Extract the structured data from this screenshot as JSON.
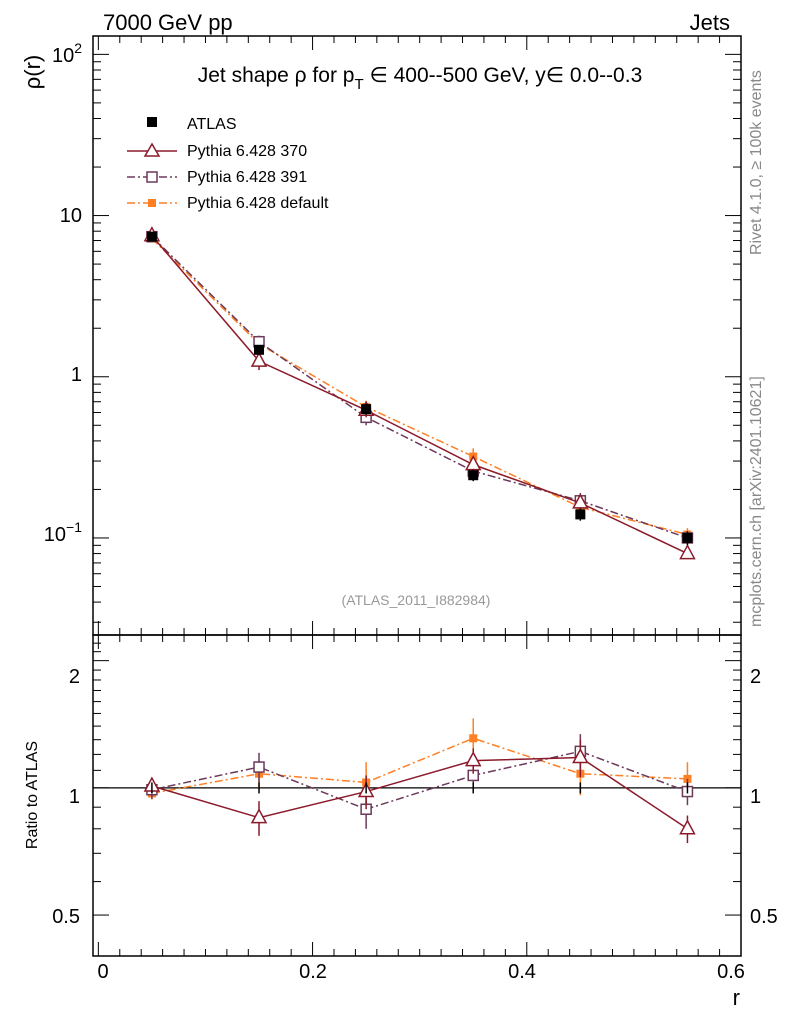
{
  "header": {
    "left": "7000 GeV pp",
    "right": "Jets"
  },
  "side_labels": {
    "rivet": "Rivet 4.1.0, ≥ 100k events",
    "mcplots": "mcplots.cern.ch [arXiv:2401.10621]"
  },
  "chart_data": {
    "type": "line",
    "title": "Jet shape ρ for p_T ∈ 400--500 GeV, y∈ 0.0--0.3",
    "title_parts": {
      "pre": "Jet shape ρ for p",
      "sub": "T",
      "post": " ∈ 400--500 GeV, y∈ 0.0--0.3"
    },
    "analysis_label": "(ATLAS_2011_I882984)",
    "xlabel": "r",
    "ylabel": "ρ(r)",
    "ratio_ylabel": "Ratio to ATLAS",
    "xlim": [
      -0.005,
      0.6
    ],
    "ylim": [
      0.025,
      130
    ],
    "yscale": "log",
    "ratio_ylim": [
      0.4,
      2.3
    ],
    "ratio_yscale": "log",
    "x_ticks": [
      0,
      0.2,
      0.4,
      0.6
    ],
    "x_tick_labels": [
      "0",
      "0.2",
      "0.4",
      "0.6"
    ],
    "y_ticks": [
      0.1,
      1,
      10,
      100
    ],
    "y_tick_labels": {
      "e-1": {
        "base": "10",
        "exp": "−1"
      },
      "one": "1",
      "ten": "10",
      "e2": {
        "base": "10",
        "exp": "2"
      }
    },
    "ratio_ticks": [
      0.5,
      1,
      2
    ],
    "ratio_tick_labels": [
      "0.5",
      "1",
      "2"
    ],
    "x": [
      0.05,
      0.15,
      0.25,
      0.35,
      0.45,
      0.55
    ],
    "series": [
      {
        "name": "ATLAS",
        "color": "#000000",
        "marker": "filled-square",
        "values": [
          7.4,
          1.47,
          0.63,
          0.245,
          0.14,
          0.1
        ],
        "errors": [
          0.3,
          0.1,
          0.05,
          0.02,
          0.012,
          0.01
        ],
        "ratio": [
          1,
          1,
          1,
          1,
          1,
          1
        ],
        "ratio_errors": [
          0,
          0,
          0,
          0,
          0,
          0
        ]
      },
      {
        "name": "Pythia 6.428 370",
        "color": "#8b1a2b",
        "marker": "open-triangle",
        "line": "solid",
        "values": [
          7.5,
          1.25,
          0.62,
          0.285,
          0.165,
          0.08
        ],
        "errors": [
          0.4,
          0.15,
          0.06,
          0.02,
          0.02,
          0.006
        ],
        "ratio": [
          1.01,
          0.85,
          0.98,
          1.16,
          1.18,
          0.8
        ],
        "ratio_errors": [
          0.04,
          0.08,
          0.09,
          0.08,
          0.12,
          0.06
        ]
      },
      {
        "name": "Pythia 6.428 391",
        "color": "#6b3a5a",
        "marker": "open-square",
        "line": "dashdot",
        "values": [
          7.4,
          1.65,
          0.56,
          0.26,
          0.17,
          0.1
        ],
        "errors": [
          0.3,
          0.15,
          0.06,
          0.02,
          0.02,
          0.007
        ],
        "ratio": [
          0.99,
          1.12,
          0.89,
          1.07,
          1.22,
          0.98
        ],
        "ratio_errors": [
          0.05,
          0.09,
          0.09,
          0.09,
          0.12,
          0.07
        ]
      },
      {
        "name": "Pythia 6.428 default",
        "color": "#ff7f24",
        "marker": "filled-square",
        "line": "dashdot",
        "values": [
          7.2,
          1.6,
          0.65,
          0.32,
          0.155,
          0.105
        ],
        "errors": [
          0.3,
          0.12,
          0.06,
          0.04,
          0.02,
          0.01
        ],
        "ratio": [
          0.97,
          1.08,
          1.03,
          1.31,
          1.08,
          1.05
        ],
        "ratio_errors": [
          0.03,
          0.08,
          0.12,
          0.15,
          0.12,
          0.1
        ]
      }
    ],
    "legend_position": "top-left"
  }
}
